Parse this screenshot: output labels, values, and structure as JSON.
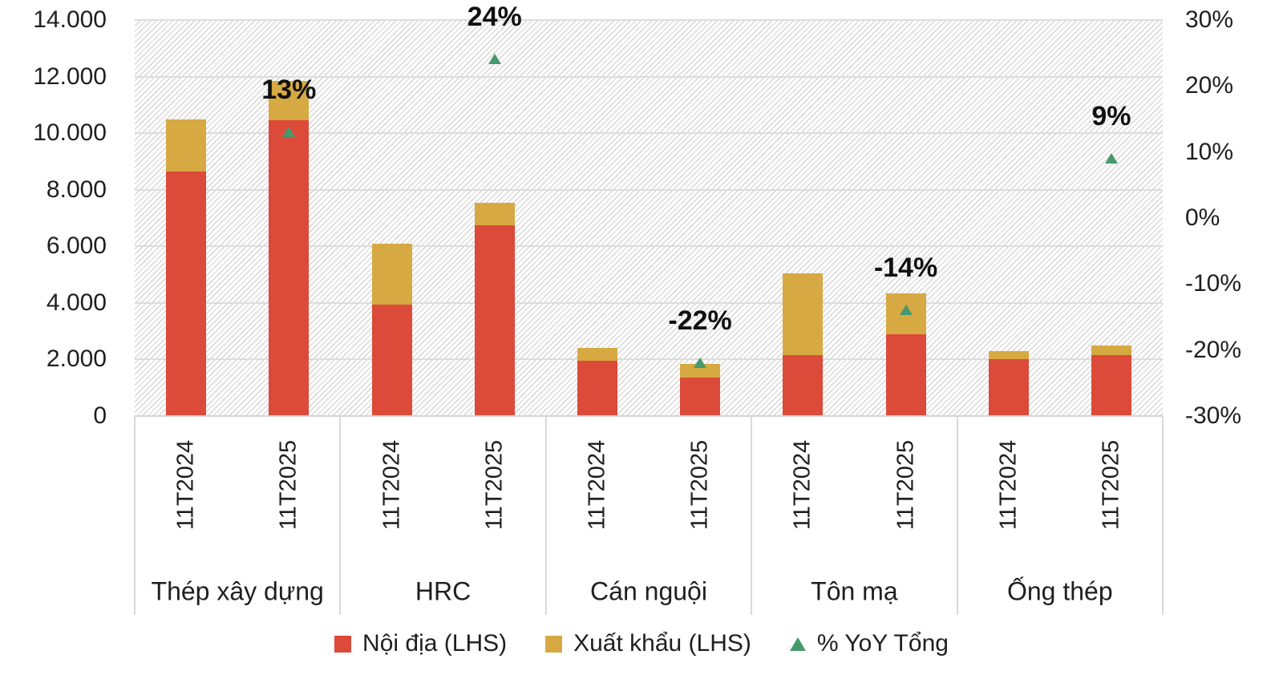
{
  "chart_data": {
    "type": "bar",
    "variant": "stacked-columns-with-triangle-markers",
    "title": "",
    "groups": [
      "Thép xây dựng",
      "HRC",
      "Cán nguội",
      "Tôn mạ",
      "Ống thép"
    ],
    "bar_labels": [
      "11T2024",
      "11T2025",
      "11T2024",
      "11T2025",
      "11T2024",
      "11T2025",
      "11T2024",
      "11T2025",
      "11T2024",
      "11T2025"
    ],
    "series": [
      {
        "name": "Nội địa (LHS)",
        "marker": "square",
        "color": "#dc4a3a",
        "axis": "left",
        "values": [
          8650,
          10450,
          3950,
          6750,
          1950,
          1350,
          2150,
          2900,
          2000,
          2150
        ]
      },
      {
        "name": "Xuất khẩu (LHS)",
        "marker": "square",
        "color": "#d6a942",
        "axis": "left",
        "values": [
          1850,
          1400,
          2150,
          800,
          450,
          500,
          2900,
          1450,
          300,
          350
        ]
      },
      {
        "name": "% YoY Tổng",
        "marker": "triangle",
        "color": "#46996b",
        "axis": "right",
        "values": [
          null,
          13,
          null,
          24,
          null,
          -22,
          null,
          -14,
          null,
          9
        ],
        "point_labels": [
          null,
          "13%",
          null,
          "24%",
          null,
          "-22%",
          null,
          "-14%",
          null,
          "9%"
        ]
      }
    ],
    "stacked_totals": [
      10500,
      11850,
      6100,
      7550,
      2400,
      1850,
      5050,
      4350,
      2300,
      2500
    ],
    "left_axis": {
      "min": 0,
      "max": 14000,
      "step": 2000,
      "tick_labels": [
        "0",
        "2.000",
        "4.000",
        "6.000",
        "8.000",
        "10.000",
        "12.000",
        "14.000"
      ]
    },
    "right_axis": {
      "min": -30,
      "max": 30,
      "step": 10,
      "tick_labels": [
        "30%",
        "20%",
        "10%",
        "0%",
        "-10%",
        "-20%",
        "-30%"
      ]
    },
    "grid": true,
    "legend_position": "bottom",
    "plot_background": "diagonal-hatch",
    "gridline_color": "#dcdcdc",
    "text_color": "#1f1f1f"
  }
}
